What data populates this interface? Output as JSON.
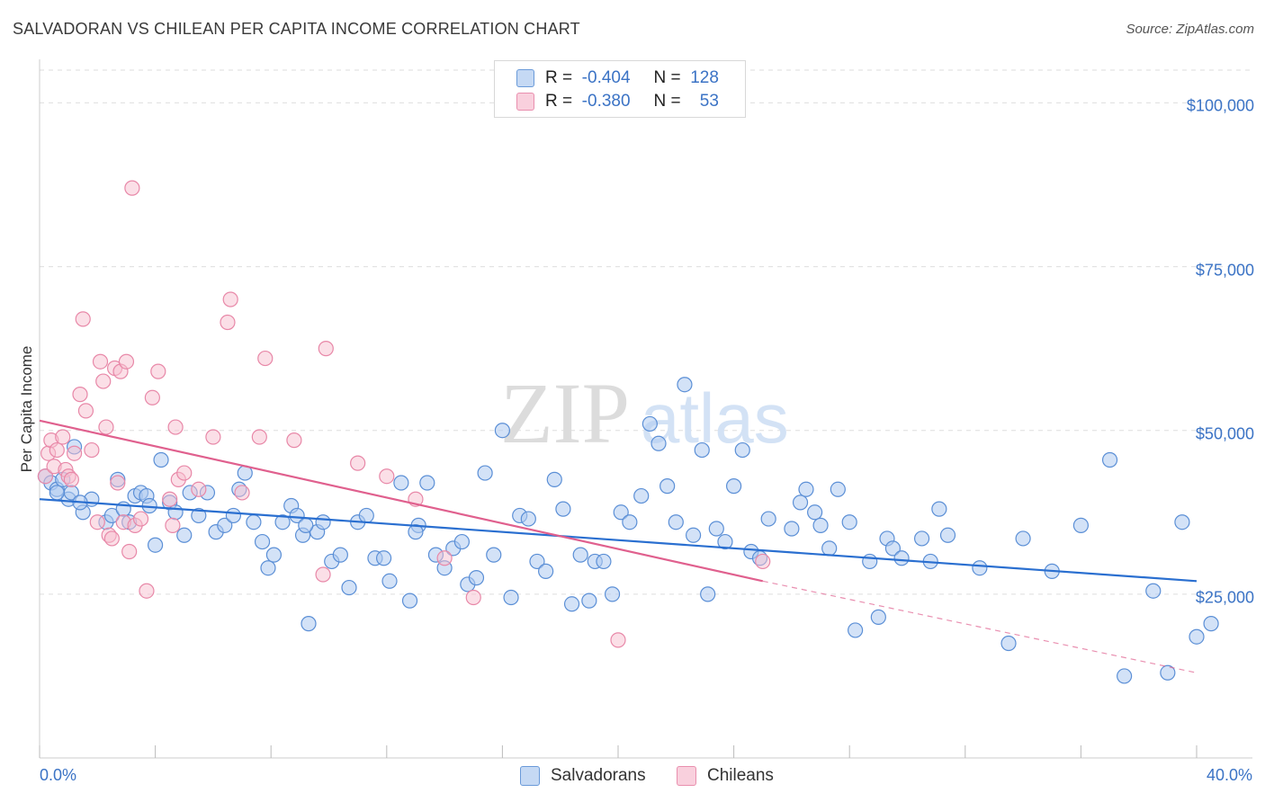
{
  "title": "SALVADORAN VS CHILEAN PER CAPITA INCOME CORRELATION CHART",
  "source": "Source: ZipAtlas.com",
  "legend": {
    "rows": [
      {
        "r_label": "R =",
        "r_value": "-0.404",
        "n_label": "N =",
        "n_value": "128"
      },
      {
        "r_label": "R =",
        "r_value": "-0.380",
        "n_label": "N =",
        "n_value": "53"
      }
    ]
  },
  "bottom_legend": {
    "salvadorans": "Salvadorans",
    "chileans": "Chileans"
  },
  "watermark": {
    "zip": "ZIP",
    "atlas": "atlas"
  },
  "colors": {
    "salvadoran_fill": "#aecbf0",
    "salvadoran_stroke": "#5b8fd6",
    "salvadoran_line": "#2a6fd0",
    "chilean_fill": "#f7c0d0",
    "chilean_stroke": "#e888a8",
    "chilean_line": "#e0608e",
    "tick_label": "#3b73c5",
    "grid": "#dedede"
  },
  "chart_data": {
    "type": "scatter",
    "title": "SALVADORAN VS CHILEAN PER CAPITA INCOME CORRELATION CHART",
    "xlabel": "",
    "ylabel": "Per Capita Income",
    "xlim": [
      0,
      40
    ],
    "ylim": [
      0,
      105000
    ],
    "x_tick_labels": [
      "0.0%",
      "40.0%"
    ],
    "y_ticks": [
      {
        "value": 25000,
        "label": "$25,000"
      },
      {
        "value": 50000,
        "label": "$50,000"
      },
      {
        "value": 75000,
        "label": "$75,000"
      },
      {
        "value": 100000,
        "label": "$100,000"
      }
    ],
    "grid": true,
    "series": [
      {
        "name": "Salvadorans",
        "r": -0.404,
        "n": 128,
        "trend": {
          "x0": 0,
          "y0": 39500,
          "x1": 40,
          "y1": 27000
        },
        "points": [
          [
            0.2,
            43000
          ],
          [
            0.4,
            42000
          ],
          [
            0.6,
            41000
          ],
          [
            0.8,
            42500
          ],
          [
            1.0,
            39500
          ],
          [
            1.1,
            40500
          ],
          [
            1.2,
            47500
          ],
          [
            1.5,
            37500
          ],
          [
            1.8,
            39500
          ],
          [
            2.3,
            36000
          ],
          [
            2.5,
            37000
          ],
          [
            2.7,
            42500
          ],
          [
            2.9,
            38000
          ],
          [
            3.1,
            36000
          ],
          [
            3.3,
            40000
          ],
          [
            3.5,
            40500
          ],
          [
            3.7,
            40000
          ],
          [
            4.0,
            32500
          ],
          [
            4.2,
            45500
          ],
          [
            4.5,
            39000
          ],
          [
            4.7,
            37500
          ],
          [
            5.0,
            34000
          ],
          [
            5.2,
            40500
          ],
          [
            5.5,
            37000
          ],
          [
            5.8,
            40500
          ],
          [
            6.1,
            34500
          ],
          [
            6.4,
            35500
          ],
          [
            6.7,
            37000
          ],
          [
            6.9,
            41000
          ],
          [
            7.1,
            43500
          ],
          [
            7.4,
            36000
          ],
          [
            7.7,
            33000
          ],
          [
            7.9,
            29000
          ],
          [
            8.1,
            31000
          ],
          [
            8.4,
            36000
          ],
          [
            8.7,
            38500
          ],
          [
            8.9,
            37000
          ],
          [
            9.1,
            34000
          ],
          [
            9.3,
            20500
          ],
          [
            9.6,
            34500
          ],
          [
            9.8,
            36000
          ],
          [
            10.1,
            30000
          ],
          [
            10.4,
            31000
          ],
          [
            10.7,
            26000
          ],
          [
            11.0,
            36000
          ],
          [
            11.3,
            37000
          ],
          [
            11.6,
            30500
          ],
          [
            11.9,
            30500
          ],
          [
            12.1,
            27000
          ],
          [
            12.5,
            42000
          ],
          [
            12.8,
            24000
          ],
          [
            13.1,
            35500
          ],
          [
            13.4,
            42000
          ],
          [
            13.7,
            31000
          ],
          [
            14.0,
            29000
          ],
          [
            14.3,
            32000
          ],
          [
            14.6,
            33000
          ],
          [
            14.8,
            26500
          ],
          [
            15.1,
            27500
          ],
          [
            15.4,
            43500
          ],
          [
            15.7,
            31000
          ],
          [
            16.0,
            50000
          ],
          [
            16.3,
            24500
          ],
          [
            16.6,
            37000
          ],
          [
            16.9,
            36500
          ],
          [
            17.2,
            30000
          ],
          [
            17.5,
            28500
          ],
          [
            17.8,
            42500
          ],
          [
            18.1,
            38000
          ],
          [
            18.4,
            23500
          ],
          [
            18.7,
            31000
          ],
          [
            19.0,
            24000
          ],
          [
            19.2,
            30000
          ],
          [
            19.5,
            30000
          ],
          [
            19.8,
            25000
          ],
          [
            20.1,
            37500
          ],
          [
            20.4,
            36000
          ],
          [
            20.8,
            40000
          ],
          [
            21.1,
            51000
          ],
          [
            21.4,
            48000
          ],
          [
            21.7,
            41500
          ],
          [
            22.0,
            36000
          ],
          [
            22.3,
            57000
          ],
          [
            22.6,
            34000
          ],
          [
            22.9,
            47000
          ],
          [
            23.1,
            25000
          ],
          [
            23.4,
            35000
          ],
          [
            23.7,
            33000
          ],
          [
            24.0,
            41500
          ],
          [
            24.3,
            47000
          ],
          [
            24.6,
            31500
          ],
          [
            24.9,
            30500
          ],
          [
            25.2,
            36500
          ],
          [
            26.0,
            35000
          ],
          [
            26.3,
            39000
          ],
          [
            26.5,
            41000
          ],
          [
            26.8,
            37500
          ],
          [
            27.0,
            35500
          ],
          [
            27.3,
            32000
          ],
          [
            27.6,
            41000
          ],
          [
            28.0,
            36000
          ],
          [
            28.2,
            19500
          ],
          [
            28.7,
            30000
          ],
          [
            29.0,
            21500
          ],
          [
            29.3,
            33500
          ],
          [
            29.5,
            32000
          ],
          [
            29.8,
            30500
          ],
          [
            30.5,
            33500
          ],
          [
            30.8,
            30000
          ],
          [
            31.1,
            38000
          ],
          [
            31.4,
            34000
          ],
          [
            32.5,
            29000
          ],
          [
            33.5,
            17500
          ],
          [
            34.0,
            33500
          ],
          [
            35.0,
            28500
          ],
          [
            36.0,
            35500
          ],
          [
            37.0,
            45500
          ],
          [
            37.5,
            12500
          ],
          [
            38.5,
            25500
          ],
          [
            39.0,
            13000
          ],
          [
            39.5,
            36000
          ],
          [
            40.0,
            18500
          ],
          [
            40.5,
            20500
          ],
          [
            0.6,
            40500
          ],
          [
            1.4,
            39000
          ],
          [
            3.8,
            38500
          ],
          [
            9.2,
            35500
          ],
          [
            13.0,
            34500
          ]
        ]
      },
      {
        "name": "Chileans",
        "r": -0.38,
        "n": 53,
        "trend": {
          "x0": 0,
          "y0": 51500,
          "x1": 25,
          "y1": 27000,
          "dash_x1": 40,
          "dash_y1": 13000
        },
        "points": [
          [
            0.2,
            43000
          ],
          [
            0.3,
            46500
          ],
          [
            0.4,
            48500
          ],
          [
            0.5,
            44500
          ],
          [
            0.6,
            47000
          ],
          [
            0.8,
            49000
          ],
          [
            0.9,
            44000
          ],
          [
            1.0,
            43000
          ],
          [
            1.1,
            42500
          ],
          [
            1.2,
            46500
          ],
          [
            1.4,
            55500
          ],
          [
            1.5,
            67000
          ],
          [
            1.6,
            53000
          ],
          [
            1.8,
            47000
          ],
          [
            2.0,
            36000
          ],
          [
            2.1,
            60500
          ],
          [
            2.2,
            57500
          ],
          [
            2.3,
            50500
          ],
          [
            2.4,
            34000
          ],
          [
            2.5,
            33500
          ],
          [
            2.6,
            59500
          ],
          [
            2.7,
            42000
          ],
          [
            2.8,
            59000
          ],
          [
            2.9,
            36000
          ],
          [
            3.0,
            60500
          ],
          [
            3.1,
            31500
          ],
          [
            3.2,
            87000
          ],
          [
            3.3,
            35500
          ],
          [
            3.5,
            36500
          ],
          [
            3.7,
            25500
          ],
          [
            3.9,
            55000
          ],
          [
            4.1,
            59000
          ],
          [
            4.5,
            39500
          ],
          [
            4.6,
            35500
          ],
          [
            4.7,
            50500
          ],
          [
            4.8,
            42500
          ],
          [
            5.0,
            43500
          ],
          [
            5.5,
            41000
          ],
          [
            6.0,
            49000
          ],
          [
            6.5,
            66500
          ],
          [
            6.6,
            70000
          ],
          [
            7.0,
            40500
          ],
          [
            7.6,
            49000
          ],
          [
            7.8,
            61000
          ],
          [
            8.8,
            48500
          ],
          [
            9.8,
            28000
          ],
          [
            9.9,
            62500
          ],
          [
            11.0,
            45000
          ],
          [
            12.0,
            43000
          ],
          [
            13.0,
            39500
          ],
          [
            14.0,
            30500
          ],
          [
            15.0,
            24500
          ],
          [
            20.0,
            18000
          ],
          [
            25.0,
            30000
          ]
        ]
      }
    ]
  }
}
